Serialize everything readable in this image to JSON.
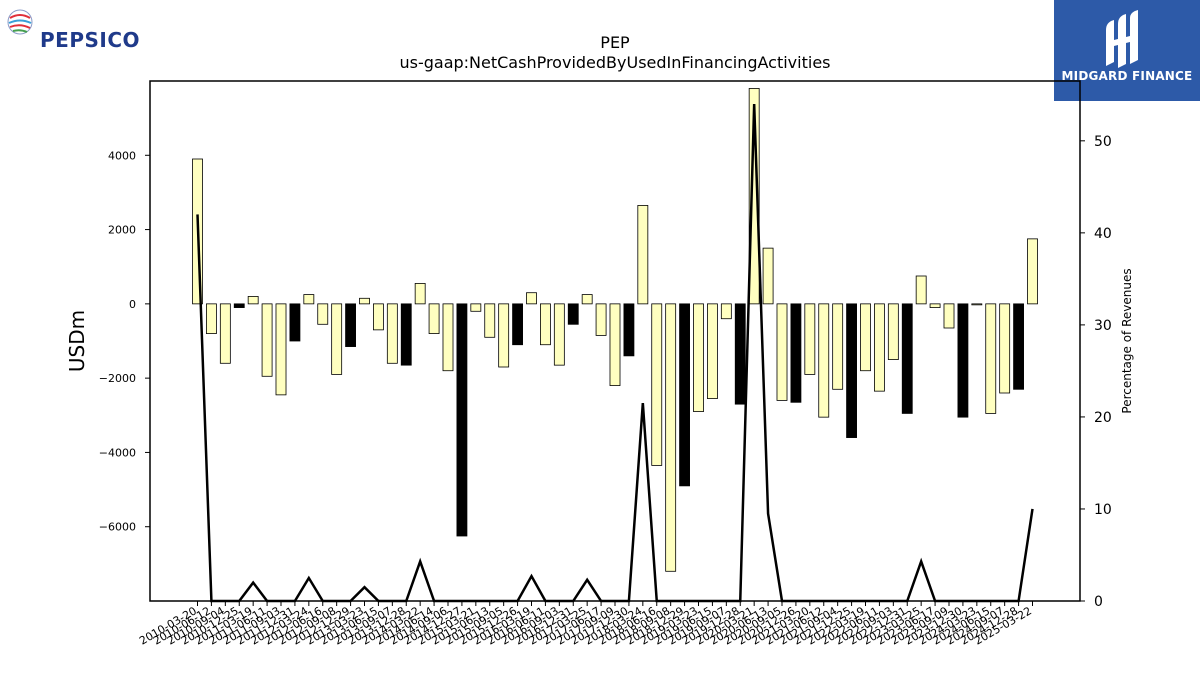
{
  "brand_left": {
    "name": "PEPSICO"
  },
  "brand_right": {
    "name": "MIDGARD FINANCE"
  },
  "chart_data": {
    "type": "bar",
    "title": "PEP",
    "subtitle": "us-gaap:NetCashProvidedByUsedInFinancingActivities",
    "ylabel": "USDm",
    "y2label": "Percentage of Revenues",
    "ylim": [
      -8000,
      6000
    ],
    "y2lim": [
      0,
      56.5
    ],
    "yticks": [
      -6000,
      -4000,
      -2000,
      0,
      2000,
      4000
    ],
    "ytick_labels": [
      "−6000",
      "−4000",
      "−2000",
      "0",
      "2000",
      "4000"
    ],
    "y2ticks": [
      0,
      10,
      20,
      30,
      40,
      50
    ],
    "grid": false,
    "categories": [
      "2010-03-20",
      "2010-06-12",
      "2010-09-04",
      "2010-12-25",
      "2011-03-19",
      "2011-06-11",
      "2011-09-03",
      "2011-12-31",
      "2012-03-24",
      "2012-06-16",
      "2012-09-08",
      "2012-12-29",
      "2013-03-23",
      "2013-06-15",
      "2013-09-07",
      "2013-12-28",
      "2014-03-22",
      "2014-06-14",
      "2014-09-06",
      "2014-12-27",
      "2015-03-21",
      "2015-06-13",
      "2015-09-05",
      "2015-12-26",
      "2016-03-19",
      "2016-06-11",
      "2016-09-03",
      "2016-12-31",
      "2017-03-25",
      "2017-06-17",
      "2017-09-09",
      "2017-12-30",
      "2018-03-24",
      "2018-06-16",
      "2018-09-08",
      "2018-12-29",
      "2019-03-23",
      "2019-06-15",
      "2019-09-07",
      "2019-12-28",
      "2020-03-21",
      "2020-06-13",
      "2020-09-05",
      "2020-12-26",
      "2021-03-20",
      "2021-06-12",
      "2021-09-04",
      "2021-12-25",
      "2022-03-19",
      "2022-06-11",
      "2022-09-03",
      "2022-12-31",
      "2023-03-25",
      "2023-06-17",
      "2023-09-09",
      "2023-12-30",
      "2024-03-23",
      "2024-06-15",
      "2024-09-07",
      "2024-12-28",
      "2025-03-22"
    ],
    "tick_labels_shown": [
      "2010-03-20",
      "2010-06-12",
      "2010-09-04",
      "2010-12-25",
      "2011-03-19",
      "2011-06-11",
      "2011-09-03",
      "2011-12-31",
      "2012-03-24",
      "2012-06-16",
      "2012-09-08",
      "2012-12-29",
      "2013-03-23",
      "2013-06-15",
      "2013-09-07",
      "2013-12-28",
      "2014-03-22",
      "2014-06-14",
      "2014-09-06",
      "2014-12-27",
      "2015-03-21",
      "2015-06-13",
      "2015-09-05",
      "2015-12-26",
      "2016-03-19",
      "2016-06-11",
      "2016-09-03",
      "2016-12-31",
      "2017-03-25",
      "2017-06-17",
      "2017-09-09",
      "2017-12-30",
      "2018-03-24",
      "2018-06-16",
      "2018-09-08",
      "2018-12-29",
      "2019-03-23",
      "2019-06-15",
      "2019-09-07",
      "2019-12-28",
      "2020-03-21",
      "2020-06-13",
      "2020-09-05",
      "2020-12-26",
      "2021-03-20",
      "2021-06-12",
      "2021-09-04",
      "2021-12-25",
      "2022-03-19",
      "2022-06-11",
      "2022-09-03",
      "2022-12-31",
      "2023-03-25",
      "2023-06-17",
      "2023-09-09",
      "2023-12-30",
      "2024-03-23",
      "2024-06-15",
      "2024-09-07",
      "2024-12-28",
      "2025-03-22"
    ],
    "series": [
      {
        "kind": "bar",
        "values": [
          3900,
          -800,
          -1600,
          -100,
          200,
          -1950,
          -2450,
          -1000,
          250,
          -550,
          -1900,
          -1150,
          150,
          -700,
          -1600,
          -1650,
          550,
          -800,
          -1800,
          -6250,
          -200,
          -900,
          -1700,
          -1100,
          300,
          -1100,
          -1650,
          -550,
          250,
          -850,
          -2200,
          -1400,
          2650,
          -4350,
          -7200,
          -4900,
          -2900,
          -2550,
          -400,
          -2700,
          5800,
          1500,
          -2600,
          -2650,
          -1900,
          -3050,
          -2300,
          -3600,
          -1800,
          -2350,
          -1500,
          -2950,
          750,
          -100,
          -650,
          -3050,
          0,
          -2950,
          -2400,
          -2300,
          1750
        ],
        "fill": [
          "y",
          "y",
          "y",
          "k",
          "y",
          "y",
          "y",
          "k",
          "y",
          "y",
          "y",
          "k",
          "y",
          "y",
          "y",
          "k",
          "y",
          "y",
          "y",
          "k",
          "y",
          "y",
          "y",
          "k",
          "y",
          "y",
          "y",
          "k",
          "y",
          "y",
          "y",
          "k",
          "y",
          "y",
          "y",
          "k",
          "y",
          "y",
          "y",
          "k",
          "y",
          "y",
          "y",
          "k",
          "y",
          "y",
          "y",
          "k",
          "y",
          "y",
          "y",
          "k",
          "y",
          "y",
          "y",
          "k",
          "y",
          "y",
          "y",
          "k",
          "y"
        ]
      },
      {
        "kind": "line",
        "axis": "right",
        "values": [
          42,
          0,
          0,
          0,
          2,
          0,
          0,
          0,
          2.5,
          0,
          0,
          0,
          1.5,
          0,
          0,
          0,
          4.3,
          0,
          0,
          0,
          0,
          0,
          0,
          0,
          2.7,
          0,
          0,
          0,
          2.3,
          0,
          0,
          0,
          21.5,
          0,
          0,
          0,
          0,
          0,
          0,
          0,
          54,
          9.5,
          0,
          0,
          0,
          0,
          0,
          0,
          0,
          0,
          0,
          0,
          4.3,
          0,
          0,
          0,
          0,
          0,
          0,
          0,
          10
        ]
      }
    ],
    "colors": {
      "bar_light": "#ffffc0",
      "bar_dark": "#000000",
      "line": "#000000",
      "bar_edge": "#000000"
    }
  }
}
